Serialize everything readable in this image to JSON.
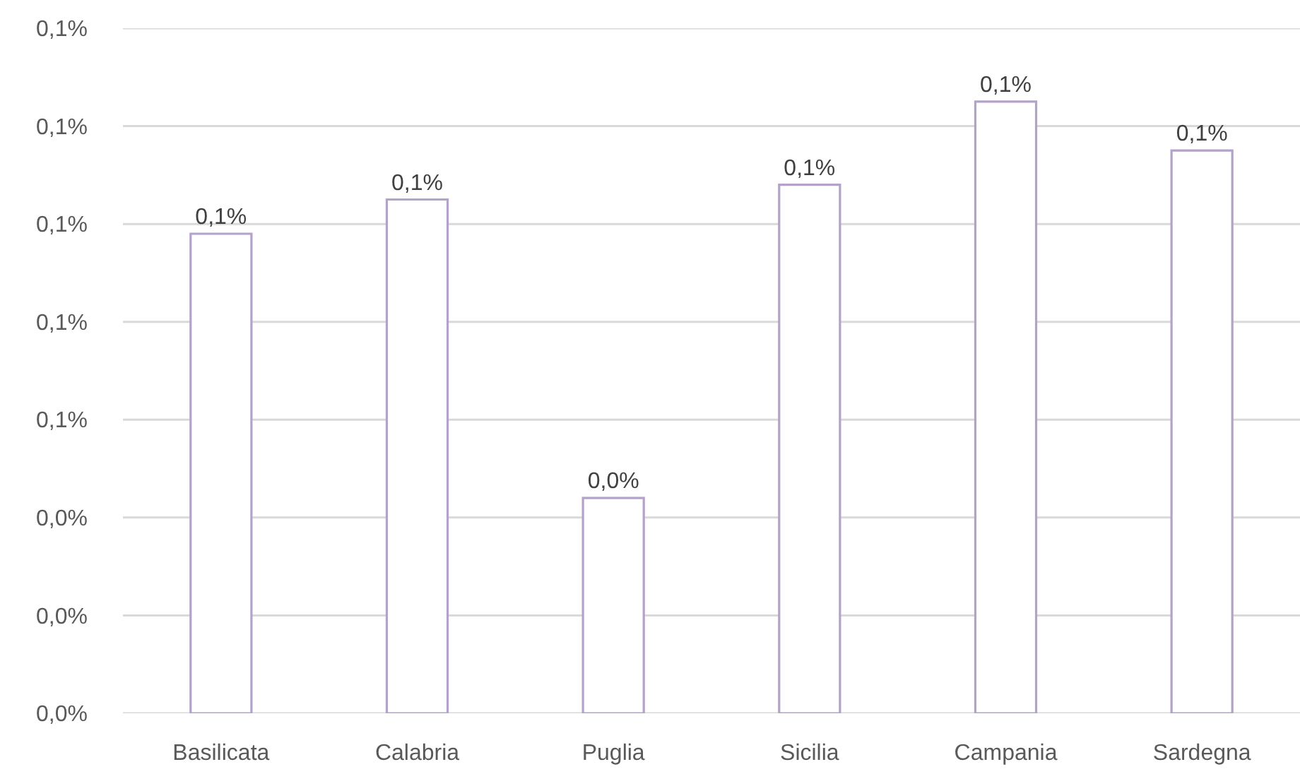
{
  "chart_data": {
    "type": "bar",
    "categories": [
      "Basilicata",
      "Calabria",
      "Puglia",
      "Sicilia",
      "Campania",
      "Sardegna"
    ],
    "values": [
      0.098,
      0.105,
      0.044,
      0.108,
      0.125,
      0.115
    ],
    "value_labels": [
      "0,1%",
      "0,1%",
      "0,0%",
      "0,1%",
      "0,1%",
      "0,1%"
    ],
    "color": "#b3a2c9",
    "ylim": [
      0,
      0.14
    ],
    "yticks": [
      {
        "value": 0,
        "label": "0,0%"
      },
      {
        "value": 0.02,
        "label": "0,0%"
      },
      {
        "value": 0.04,
        "label": "0,0%"
      },
      {
        "value": 0.06,
        "label": "0,1%"
      },
      {
        "value": 0.08,
        "label": "0,1%"
      },
      {
        "value": 0.1,
        "label": "0,1%"
      },
      {
        "value": 0.12,
        "label": "0,1%"
      },
      {
        "value": 0.14,
        "label": "0,1%"
      }
    ],
    "grid": true
  }
}
